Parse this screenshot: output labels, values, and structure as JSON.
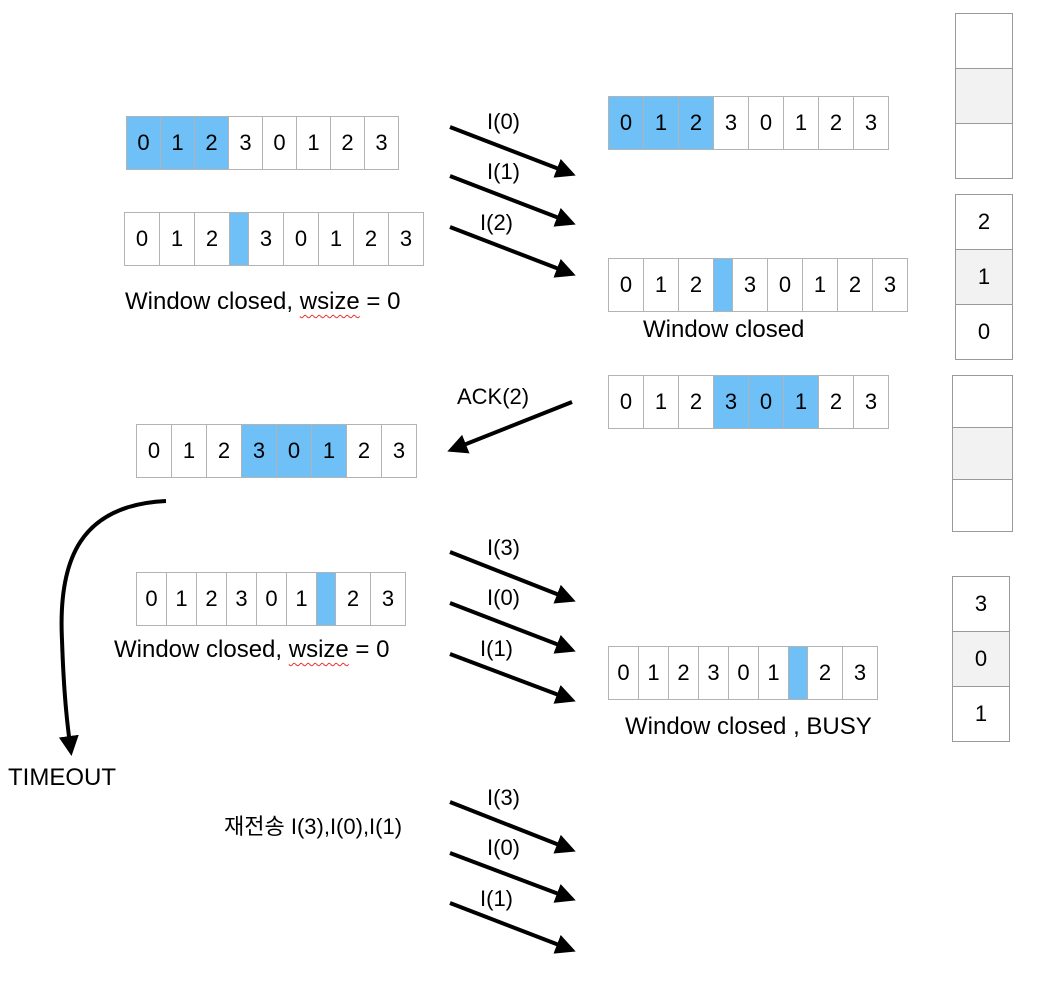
{
  "windows": {
    "w1": [
      "0",
      "1",
      "2",
      "3",
      "0",
      "1",
      "2",
      "3"
    ],
    "w2": [
      "0",
      "1",
      "2",
      "",
      "3",
      "0",
      "1",
      "2",
      "3"
    ],
    "w3": [
      "0",
      "1",
      "2",
      "3",
      "0",
      "1",
      "2",
      "3"
    ],
    "w4": [
      "0",
      "1",
      "2",
      "",
      "3",
      "0",
      "1",
      "2",
      "3"
    ],
    "w5": [
      "0",
      "1",
      "2",
      "3",
      "0",
      "1",
      "2",
      "3"
    ],
    "w6": [
      "0",
      "1",
      "2",
      "3",
      "0",
      "1",
      "2",
      "3"
    ],
    "w7": [
      "0",
      "1",
      "2",
      "3",
      "0",
      "1",
      "",
      "2",
      "3"
    ],
    "w8": [
      "0",
      "1",
      "2",
      "3",
      "0",
      "1",
      "",
      "2",
      "3"
    ]
  },
  "labels": {
    "l1_prefix": "Window closed, ",
    "l1_word": "wsize",
    "l1_suffix": " = 0",
    "l2": "Window closed",
    "l3_prefix": "Window closed, ",
    "l3_word": "wsize",
    "l3_suffix": " = 0",
    "l4": "Window closed , BUSY",
    "timeout": "TIMEOUT",
    "retransmit": "재전송 I(3),I(0),I(1)"
  },
  "arrow_labels": {
    "a1": "I(0)",
    "a2": "I(1)",
    "a3": "I(2)",
    "ack": "ACK(2)",
    "a4": "I(3)",
    "a5": "I(0)",
    "a6": "I(1)",
    "a7": "I(3)",
    "a8": "I(0)",
    "a9": "I(1)"
  },
  "stacks": {
    "s1": [
      "",
      "",
      ""
    ],
    "s2": [
      "2",
      "1",
      "0"
    ],
    "s3": [
      "",
      "",
      ""
    ],
    "s4": [
      "3",
      "0",
      "1"
    ]
  }
}
